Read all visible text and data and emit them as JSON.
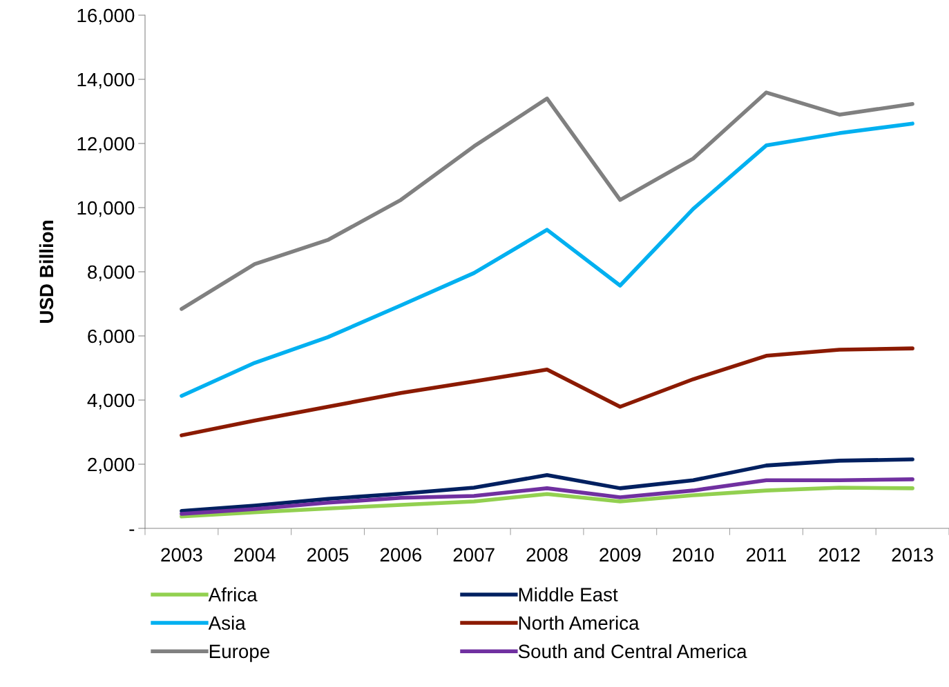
{
  "chart_data": {
    "type": "line",
    "ylabel": "USD Billion",
    "categories": [
      "2003",
      "2004",
      "2005",
      "2006",
      "2007",
      "2008",
      "2009",
      "2010",
      "2011",
      "2012",
      "2013"
    ],
    "series": [
      {
        "name": "Africa",
        "color": "#92d050",
        "values": [
          370,
          500,
          620,
          730,
          840,
          1070,
          840,
          1030,
          1180,
          1270,
          1250
        ]
      },
      {
        "name": "Asia",
        "color": "#00b0f0",
        "values": [
          4130,
          5160,
          5960,
          6950,
          7960,
          9310,
          7570,
          9960,
          11940,
          12320,
          12620
        ]
      },
      {
        "name": "Europe",
        "color": "#808080",
        "values": [
          6840,
          8240,
          8990,
          10240,
          11910,
          13400,
          10240,
          11530,
          13590,
          12900,
          13230
        ]
      },
      {
        "name": "Middle East",
        "color": "#002060",
        "values": [
          540,
          710,
          920,
          1080,
          1270,
          1660,
          1250,
          1500,
          1960,
          2110,
          2150
        ]
      },
      {
        "name": "North America",
        "color": "#8b1a00",
        "values": [
          2900,
          3360,
          3790,
          4220,
          4580,
          4950,
          3790,
          4650,
          5380,
          5570,
          5610
        ]
      },
      {
        "name": "South and Central America",
        "color": "#7030a0",
        "values": [
          450,
          600,
          800,
          950,
          1010,
          1250,
          970,
          1180,
          1500,
          1500,
          1530
        ]
      }
    ],
    "ylim": [
      0,
      16000
    ],
    "yticks": [
      {
        "value": 0,
        "label": "-"
      },
      {
        "value": 2000,
        "label": "2,000"
      },
      {
        "value": 4000,
        "label": "4,000"
      },
      {
        "value": 6000,
        "label": "6,000"
      },
      {
        "value": 8000,
        "label": "8,000"
      },
      {
        "value": 10000,
        "label": "10,000"
      },
      {
        "value": 12000,
        "label": "12,000"
      },
      {
        "value": 14000,
        "label": "14,000"
      },
      {
        "value": 16000,
        "label": "16,000"
      }
    ],
    "grid": false,
    "legend": "bottom",
    "marker": "none",
    "line_style": "solid"
  }
}
